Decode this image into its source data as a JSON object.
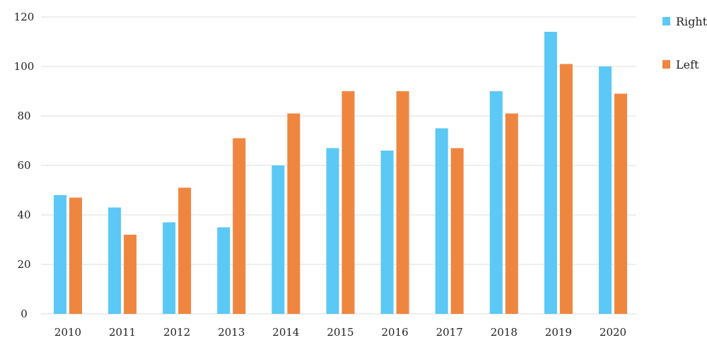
{
  "chart_data": {
    "type": "bar",
    "categories": [
      "2010",
      "2011",
      "2012",
      "2013",
      "2014",
      "2015",
      "2016",
      "2017",
      "2018",
      "2019",
      "2020"
    ],
    "series": [
      {
        "name": "Right",
        "color": "#5bc8f5",
        "values": [
          48,
          43,
          37,
          35,
          60,
          67,
          66,
          75,
          90,
          114,
          100
        ]
      },
      {
        "name": "Left",
        "color": "#ef8640",
        "values": [
          47,
          32,
          51,
          71,
          81,
          90,
          90,
          67,
          81,
          101,
          89
        ]
      }
    ],
    "title": "",
    "xlabel": "",
    "ylabel": "",
    "ylim": [
      0,
      120
    ],
    "yticks": [
      "0",
      "20",
      "40",
      "60",
      "80",
      "100",
      "120"
    ],
    "grid": true,
    "legend_position": "right"
  }
}
